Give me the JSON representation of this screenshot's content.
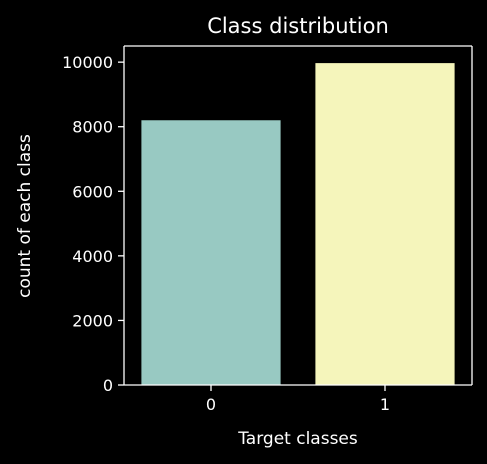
{
  "chart_data": {
    "type": "bar",
    "title": "Class distribution",
    "xlabel": "Target classes",
    "ylabel": "count of each class",
    "categories": [
      "0",
      "1"
    ],
    "values": [
      8200,
      9970
    ],
    "ylim": [
      0,
      10500
    ],
    "yticks": [
      0,
      2000,
      4000,
      6000,
      8000,
      10000
    ],
    "bar_colors": [
      "#98c9c2",
      "#f5f5bb"
    ],
    "background": "#000000",
    "foreground": "#ffffff",
    "grid": false,
    "legend": "none"
  }
}
